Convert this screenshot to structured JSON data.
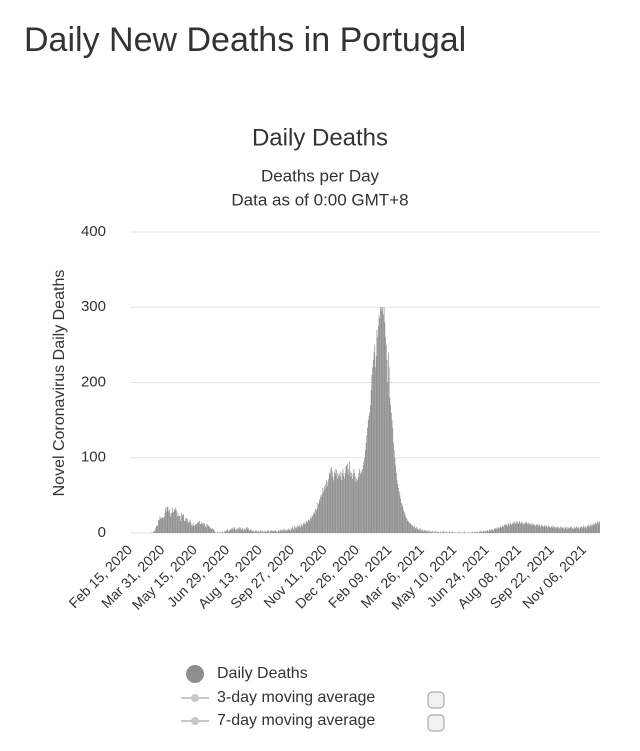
{
  "page_title": "Daily New Deaths in Portugal",
  "chart_data": {
    "type": "bar",
    "title": "Daily Deaths",
    "subtitle": [
      "Deaths per Day",
      "Data as of 0:00 GMT+8"
    ],
    "y_label": "Novel Coronavirus Daily Deaths",
    "ylim": [
      0,
      400
    ],
    "yticks": [
      0,
      100,
      200,
      300,
      400
    ],
    "grid": true,
    "categories": [
      "Feb 15, 2020",
      null,
      null,
      null,
      null,
      null,
      null,
      null,
      null,
      null,
      null,
      null,
      null,
      null,
      null,
      null,
      null,
      null,
      null,
      null,
      null,
      null,
      null,
      null,
      null,
      null,
      null,
      null,
      null,
      null,
      null,
      null,
      null,
      null,
      null,
      null,
      null,
      null,
      null,
      null,
      null,
      null,
      null,
      null,
      null,
      "Mar 31, 2020",
      null,
      null,
      null,
      null,
      null,
      null,
      null,
      null,
      null,
      null,
      null,
      null,
      null,
      null,
      null,
      null,
      null,
      null,
      null,
      null,
      null,
      null,
      null,
      null,
      null,
      null,
      null,
      null,
      null,
      null,
      null,
      null,
      null,
      null,
      null,
      null,
      null,
      null,
      null,
      null,
      null,
      null,
      null,
      null,
      "May 15, 2020",
      null,
      null,
      null,
      null,
      null,
      null,
      null,
      null,
      null,
      null,
      null,
      null,
      null,
      null,
      null,
      null,
      null,
      null,
      null,
      null,
      null,
      null,
      null,
      null,
      null,
      null,
      null,
      null,
      null,
      null,
      null,
      null,
      null,
      null,
      null,
      null,
      null,
      null,
      null,
      null,
      null,
      null,
      null,
      null,
      "Jun 29, 2020",
      null,
      null,
      null,
      null,
      null,
      null,
      null,
      null,
      null,
      null,
      null,
      null,
      null,
      null,
      null,
      null,
      null,
      null,
      null,
      null,
      null,
      null,
      null,
      null,
      null,
      null,
      null,
      null,
      null,
      null,
      null,
      null,
      null,
      null,
      null,
      null,
      null,
      null,
      null,
      null,
      null,
      null,
      null,
      null,
      "Aug 13, 2020",
      null,
      null,
      null,
      null,
      null,
      null,
      null,
      null,
      null,
      null,
      null,
      null,
      null,
      null,
      null,
      null,
      null,
      null,
      null,
      null,
      null,
      null,
      null,
      null,
      null,
      null,
      null,
      null,
      null,
      null,
      null,
      null,
      null,
      null,
      null,
      null,
      null,
      null,
      null,
      null,
      null,
      null,
      null,
      null,
      "Sep 27, 2020",
      null,
      null,
      null,
      null,
      null,
      null,
      null,
      null,
      null,
      null,
      null,
      null,
      null,
      null,
      null,
      null,
      null,
      null,
      null,
      null,
      null,
      null,
      null,
      null,
      null,
      null,
      null,
      null,
      null,
      null,
      null,
      null,
      null,
      null,
      null,
      null,
      null,
      null,
      null,
      null,
      null,
      null,
      null,
      null,
      "Nov 11, 2020",
      null,
      null,
      null,
      null,
      null,
      null,
      null,
      null,
      null,
      null,
      null,
      null,
      null,
      null,
      null,
      null,
      null,
      null,
      null,
      null,
      null,
      null,
      null,
      null,
      null,
      null,
      null,
      null,
      null,
      null,
      null,
      null,
      null,
      null,
      null,
      null,
      null,
      null,
      null,
      null,
      null,
      null,
      null,
      null,
      "Dec 26, 2020",
      null,
      null,
      null,
      null,
      null,
      null,
      null,
      null,
      null,
      null,
      null,
      null,
      null,
      null,
      null,
      null,
      null,
      null,
      null,
      null,
      null,
      null,
      null,
      null,
      null,
      null,
      null,
      null,
      null,
      null,
      null,
      null,
      null,
      null,
      null,
      null,
      null,
      null,
      null,
      null,
      null,
      null,
      null,
      null,
      "Feb 09, 2021",
      null,
      null,
      null,
      null,
      null,
      null,
      null,
      null,
      null,
      null,
      null,
      null,
      null,
      null,
      null,
      null,
      null,
      null,
      null,
      null,
      null,
      null,
      null,
      null,
      null,
      null,
      null,
      null,
      null,
      null,
      null,
      null,
      null,
      null,
      null,
      null,
      null,
      null,
      null,
      null,
      null,
      null,
      null,
      null,
      "Mar 26, 2021",
      null,
      null,
      null,
      null,
      null,
      null,
      null,
      null,
      null,
      null,
      null,
      null,
      null,
      null,
      null,
      null,
      null,
      null,
      null,
      null,
      null,
      null,
      null,
      null,
      null,
      null,
      null,
      null,
      null,
      null,
      null,
      null,
      null,
      null,
      null,
      null,
      null,
      null,
      null,
      null,
      null,
      null,
      null,
      null,
      "May 10, 2021",
      null,
      null,
      null,
      null,
      null,
      null,
      null,
      null,
      null,
      null,
      null,
      null,
      null,
      null,
      null,
      null,
      null,
      null,
      null,
      null,
      null,
      null,
      null,
      null,
      null,
      null,
      null,
      null,
      null,
      null,
      null,
      null,
      null,
      null,
      null,
      null,
      null,
      null,
      null,
      null,
      null,
      null,
      null,
      null,
      "Jun 24, 2021",
      null,
      null,
      null,
      null,
      null,
      null,
      null,
      null,
      null,
      null,
      null,
      null,
      null,
      null,
      null,
      null,
      null,
      null,
      null,
      null,
      null,
      null,
      null,
      null,
      null,
      null,
      null,
      null,
      null,
      null,
      null,
      null,
      null,
      null,
      null,
      null,
      null,
      null,
      null,
      null,
      null,
      null,
      null,
      null,
      "Aug 08, 2021",
      null,
      null,
      null,
      null,
      null,
      null,
      null,
      null,
      null,
      null,
      null,
      null,
      null,
      null,
      null,
      null,
      null,
      null,
      null,
      null,
      null,
      null,
      null,
      null,
      null,
      null,
      null,
      null,
      null,
      null,
      null,
      null,
      null,
      null,
      null,
      null,
      null,
      null,
      null,
      null,
      null,
      null,
      null,
      null,
      "Sep 22, 2021",
      null,
      null,
      null,
      null,
      null,
      null,
      null,
      null,
      null,
      null,
      null,
      null,
      null,
      null,
      null,
      null,
      null,
      null,
      null,
      null,
      null,
      null,
      null,
      null,
      null,
      null,
      null,
      null,
      null,
      null,
      null,
      null,
      null,
      null,
      null,
      null,
      null,
      null,
      null,
      null,
      null,
      null,
      null,
      null,
      "Nov 06, 2021",
      null,
      null,
      null,
      null,
      null,
      null,
      null,
      null,
      null,
      null,
      null,
      null,
      null,
      null,
      null,
      null,
      null,
      null,
      null,
      null,
      null
    ],
    "series": [
      {
        "name": "Daily Deaths",
        "color": "#8e8e8e",
        "values": [
          0,
          0,
          0,
          0,
          0,
          0,
          0,
          0,
          0,
          0,
          0,
          0,
          0,
          0,
          0,
          0,
          0,
          0,
          0,
          0,
          0,
          0,
          0,
          0,
          0,
          0,
          0,
          0,
          0,
          0,
          1,
          0,
          1,
          3,
          2,
          6,
          9,
          10,
          10,
          17,
          17,
          22,
          19,
          20,
          21,
          20,
          20,
          22,
          27,
          34,
          29,
          35,
          34,
          29,
          32,
          27,
          22,
          26,
          34,
          27,
          28,
          32,
          30,
          34,
          30,
          22,
          27,
          23,
          22,
          23,
          16,
          27,
          23,
          24,
          25,
          16,
          16,
          20,
          20,
          19,
          14,
          14,
          16,
          18,
          13,
          10,
          9,
          13,
          10,
          9,
          12,
          11,
          12,
          13,
          15,
          14,
          16,
          12,
          12,
          14,
          12,
          14,
          10,
          13,
          9,
          7,
          12,
          11,
          10,
          9,
          8,
          7,
          6,
          5,
          6,
          5,
          4,
          2,
          1,
          0,
          0,
          1,
          0,
          2,
          0,
          1,
          0,
          1,
          2,
          0,
          1,
          3,
          2,
          4,
          3,
          5,
          2,
          3,
          4,
          5,
          6,
          4,
          7,
          5,
          8,
          6,
          4,
          5,
          3,
          6,
          7,
          5,
          8,
          6,
          4,
          5,
          7,
          3,
          5,
          6,
          4,
          7,
          8,
          5,
          6,
          3,
          4,
          5,
          4,
          3,
          2,
          3,
          1,
          2,
          4,
          3,
          2,
          1,
          3,
          2,
          1,
          4,
          2,
          3,
          2,
          1,
          2,
          3,
          1,
          2,
          3,
          2,
          4,
          1,
          3,
          2,
          4,
          3,
          2,
          3,
          2,
          4,
          3,
          2,
          1,
          3,
          4,
          2,
          3,
          5,
          3,
          4,
          2,
          6,
          4,
          3,
          5,
          2,
          4,
          5,
          6,
          4,
          3,
          7,
          5,
          8,
          6,
          4,
          9,
          7,
          8,
          6,
          10,
          9,
          8,
          11,
          7,
          12,
          10,
          9,
          13,
          11,
          14,
          12,
          16,
          15,
          14,
          18,
          17,
          16,
          21,
          19,
          24,
          22,
          26,
          28,
          25,
          32,
          30,
          33,
          40,
          38,
          45,
          42,
          50,
          48,
          52,
          60,
          55,
          62,
          58,
          65,
          70,
          62,
          68,
          72,
          80,
          78,
          85,
          88,
          82,
          75,
          70,
          80,
          85,
          78,
          84,
          72,
          80,
          76,
          78,
          75,
          82,
          70,
          80,
          85,
          76,
          72,
          80,
          88,
          90,
          92,
          78,
          85,
          95,
          82,
          75,
          80,
          72,
          78,
          85,
          80,
          75,
          68,
          72,
          70,
          74,
          80,
          85,
          78,
          82,
          80,
          85,
          90,
          95,
          100,
          110,
          120,
          130,
          140,
          150,
          155,
          160,
          170,
          190,
          210,
          220,
          230,
          240,
          250,
          220,
          235,
          270,
          260,
          275,
          290,
          285,
          300,
          300,
          295,
          300,
          290,
          300,
          280,
          260,
          250,
          230,
          200,
          240,
          220,
          180,
          170,
          160,
          150,
          140,
          120,
          110,
          100,
          90,
          80,
          70,
          65,
          60,
          55,
          50,
          45,
          40,
          38,
          35,
          30,
          28,
          25,
          22,
          20,
          18,
          16,
          15,
          14,
          12,
          13,
          11,
          10,
          9,
          8,
          10,
          7,
          6,
          8,
          5,
          6,
          4,
          5,
          6,
          3,
          4,
          5,
          2,
          3,
          4,
          3,
          2,
          3,
          2,
          4,
          1,
          3,
          2,
          1,
          2,
          3,
          0,
          2,
          1,
          3,
          2,
          0,
          1,
          2,
          1,
          0,
          2,
          1,
          0,
          2,
          1,
          3,
          0,
          1,
          2,
          0,
          1,
          0,
          1,
          2,
          0,
          1,
          0,
          2,
          1,
          0,
          1,
          0,
          1,
          0,
          0,
          1,
          2,
          0,
          1,
          0,
          0,
          1,
          0,
          2,
          1,
          0,
          1,
          0,
          0,
          1,
          0,
          0,
          1,
          0,
          2,
          1,
          0,
          1,
          2,
          0,
          1,
          2,
          1,
          0,
          2,
          1,
          3,
          2,
          1,
          2,
          3,
          1,
          2,
          3,
          2,
          4,
          3,
          2,
          5,
          4,
          3,
          5,
          4,
          5,
          3,
          6,
          5,
          7,
          6,
          5,
          8,
          7,
          6,
          8,
          9,
          7,
          10,
          8,
          9,
          11,
          10,
          12,
          11,
          9,
          13,
          12,
          10,
          14,
          12,
          11,
          13,
          12,
          15,
          14,
          12,
          16,
          13,
          15,
          12,
          14,
          16,
          13,
          12,
          15,
          14,
          11,
          13,
          12,
          14,
          15,
          13,
          12,
          14,
          11,
          13,
          12,
          10,
          13,
          11,
          12,
          10,
          11,
          9,
          12,
          10,
          11,
          9,
          12,
          10,
          8,
          11,
          9,
          10,
          8,
          9,
          11,
          8,
          10,
          9,
          7,
          10,
          8,
          9,
          7,
          8,
          10,
          7,
          9,
          8,
          6,
          8,
          7,
          9,
          6,
          8,
          7,
          6,
          9,
          7,
          8,
          6,
          7,
          5,
          8,
          7,
          6,
          8,
          5,
          7,
          6,
          9,
          7,
          8,
          6,
          7,
          5,
          8,
          6,
          7,
          9,
          6,
          8,
          7,
          5,
          8,
          7,
          9,
          6,
          8,
          10,
          7,
          9,
          8,
          6,
          10,
          9,
          11,
          8,
          10,
          12,
          9,
          11,
          13,
          10,
          12,
          14,
          11,
          13,
          15,
          12,
          16,
          14
        ]
      }
    ],
    "inactive_legend_items": [
      {
        "name": "3-day moving average",
        "color": "#c8c8c8"
      },
      {
        "name": "7-day moving average",
        "color": "#c8c8c8"
      }
    ]
  }
}
